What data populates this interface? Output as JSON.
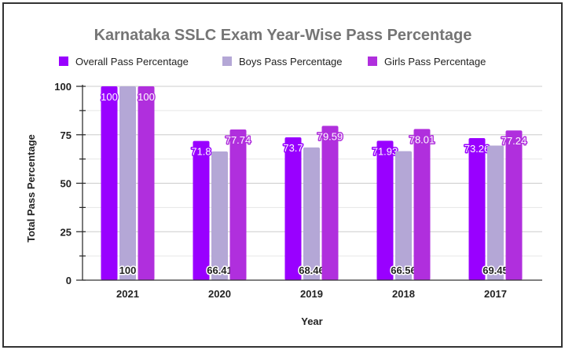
{
  "chart_data": {
    "type": "bar",
    "title": "Karnataka SSLC Exam Year-Wise Pass Percentage",
    "xlabel": "Year",
    "ylabel": "Total Pass Percentage",
    "categories": [
      "2021",
      "2020",
      "2019",
      "2018",
      "2017"
    ],
    "series": [
      {
        "name": "Overall Pass Percentage",
        "color": "#9900ff",
        "values": [
          100,
          71.8,
          73.7,
          71.93,
          73.26
        ],
        "labels": [
          "100",
          "71.8",
          "73.7",
          "71.93",
          "73.26"
        ]
      },
      {
        "name": "Boys Pass Percentage",
        "color": "#b4a7d6",
        "values": [
          100,
          66.41,
          68.46,
          66.56,
          69.45
        ],
        "labels": [
          "100",
          "66.41",
          "68.46",
          "66.56",
          "69.45"
        ]
      },
      {
        "name": "Girls Pass Percentage",
        "color": "#b02fdd",
        "values": [
          100,
          77.74,
          79.59,
          78.01,
          77.24
        ],
        "labels": [
          "100",
          "77.74",
          "79.59",
          "78.01",
          "77.24"
        ]
      }
    ],
    "ylim": [
      0,
      100
    ],
    "yticks": [
      "0",
      "25",
      "50",
      "75",
      "100"
    ],
    "grid": true,
    "legend": "top"
  }
}
